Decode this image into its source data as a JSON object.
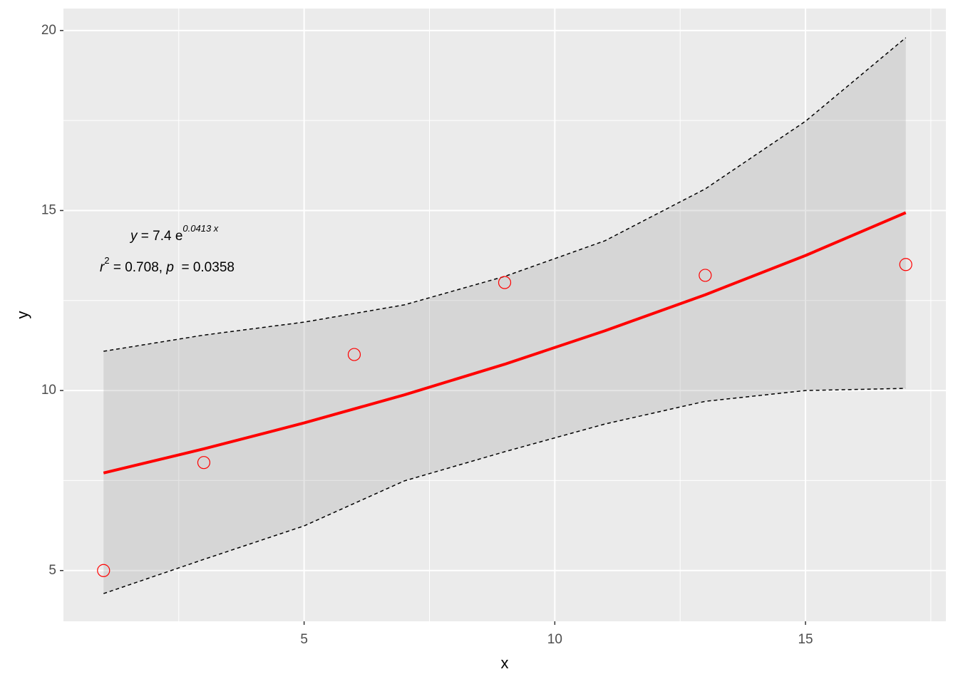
{
  "chart_data": {
    "type": "scatter",
    "xlabel": "x",
    "ylabel": "y",
    "x": [
      1,
      3,
      6,
      9,
      13,
      17
    ],
    "values": [
      5,
      8,
      11,
      13,
      13.2,
      13.5
    ],
    "color": "#ff0000",
    "fit": {
      "x": [
        1,
        3,
        5,
        7,
        9,
        11,
        13,
        15,
        17
      ],
      "values": [
        7.71,
        8.38,
        9.1,
        9.88,
        10.73,
        11.66,
        12.66,
        13.75,
        14.94
      ],
      "color": "#ff0000"
    },
    "band": {
      "x": [
        1,
        3,
        5,
        7,
        9,
        11,
        13,
        15,
        17
      ],
      "upper": [
        11.09,
        11.54,
        11.9,
        12.38,
        13.17,
        14.16,
        15.6,
        17.48,
        19.8
      ],
      "lower": [
        4.36,
        5.31,
        6.24,
        7.49,
        8.3,
        9.07,
        9.7,
        10.0,
        10.06
      ]
    },
    "annotations": [
      {
        "parts": [
          "y",
          " = 7.4 e",
          "0.0413 x"
        ]
      },
      {
        "parts": [
          "r",
          "2",
          " = 0.708,  ",
          "p",
          "  = 0.0358"
        ]
      }
    ],
    "xlim": [
      0.2,
      17.8
    ],
    "ylim": [
      3.59,
      20.61
    ],
    "xticks": [
      5,
      10,
      15
    ],
    "yticks": [
      5,
      10,
      15,
      20
    ],
    "xminor": [
      2.5,
      7.5,
      12.5,
      17.5
    ],
    "yminor": [
      7.5,
      12.5,
      17.5
    ],
    "grid": true
  }
}
